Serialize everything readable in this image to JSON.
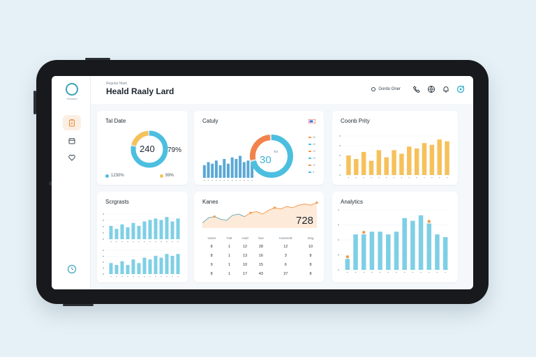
{
  "header": {
    "eyebrow": "Regular Mark",
    "title": "Heald Raaly Lard",
    "user_label": "Gordo Oner"
  },
  "sidebar": {
    "logo_caption": "Heasard",
    "items": [
      {
        "icon": "clipboard-icon",
        "active": true
      },
      {
        "icon": "calendar-icon",
        "active": false
      },
      {
        "icon": "heart-icon",
        "active": false
      }
    ],
    "bottom_icon": "clock-icon"
  },
  "colors": {
    "accent_teal": "#4cbfe0",
    "accent_orange": "#f39a4a",
    "accent_yellow": "#f6c15b",
    "track_gray": "#dfe4e8"
  },
  "cards": {
    "total": {
      "title": "Tal Date",
      "center_value": "240",
      "percent": "79%",
      "legend_left": "1230%",
      "legend_right": "99%"
    },
    "activity": {
      "title": "Catuly",
      "center_value": "30",
      "center_caption": "Tot",
      "legend_marks": [
        "30",
        "45",
        "20",
        "15",
        "10",
        "5"
      ]
    },
    "growth": {
      "title": "Coonb Prity"
    },
    "segments": {
      "title": "Scrgrasts"
    },
    "rates": {
      "title": "Kanes",
      "value": "728",
      "table_headers": [
        "Vanet",
        "Fatt",
        "Aatd",
        "Sue",
        "Caremrdt",
        "Dag"
      ],
      "table_rows": [
        [
          "8",
          "1",
          "12",
          "28",
          "12",
          "10"
        ],
        [
          "8",
          "1",
          "13",
          "16",
          "3",
          "8"
        ],
        [
          "9",
          "1",
          "10",
          "15",
          "6",
          "8"
        ],
        [
          "8",
          "1",
          "17",
          "43",
          "27",
          "8"
        ]
      ]
    },
    "analytics": {
      "title": "Analytics"
    }
  },
  "chart_data": [
    {
      "type": "pie",
      "name": "total-donut",
      "values": [
        79,
        21
      ],
      "colors": [
        "#4cbfe0",
        "#f6c15b"
      ]
    },
    {
      "type": "bar",
      "name": "activity-bars",
      "values": [
        8,
        10,
        9,
        11,
        8,
        12,
        9,
        13,
        12,
        14,
        10,
        11,
        12
      ],
      "ylim": [
        0,
        16
      ],
      "color": "#5aa8d6"
    },
    {
      "type": "pie",
      "name": "activity-donut",
      "values": [
        72,
        28
      ],
      "colors": [
        "#4cbfe0",
        "#f3824a"
      ]
    },
    {
      "type": "bar",
      "name": "growth-bars",
      "values": [
        11,
        9,
        13,
        8,
        14,
        10,
        14,
        12,
        16,
        15,
        18,
        17,
        20,
        19
      ],
      "ylim": [
        0,
        22
      ],
      "color": "#f6c15b"
    },
    {
      "type": "bar",
      "name": "segments-top-bars",
      "values": [
        9,
        7,
        10,
        8,
        11,
        9,
        12,
        13,
        14,
        13,
        15,
        12,
        14
      ],
      "ylim": [
        0,
        17
      ],
      "color": "#7ecfe6"
    },
    {
      "type": "bar",
      "name": "segments-bottom-bars",
      "values": [
        6,
        5,
        7,
        5,
        8,
        6,
        9,
        8,
        10,
        9,
        11,
        10,
        11
      ],
      "ylim": [
        0,
        13
      ],
      "color": "#7ecfe6"
    },
    {
      "type": "area",
      "name": "rates-area",
      "x": [
        0,
        1,
        2,
        3,
        4,
        5,
        6,
        7,
        8,
        9,
        10,
        11,
        12,
        13,
        14,
        15,
        16,
        17,
        18,
        19
      ],
      "values": [
        4,
        8,
        9,
        7,
        6,
        10,
        11,
        9,
        12,
        13,
        11,
        14,
        16,
        15,
        17,
        16,
        18,
        19,
        18,
        20
      ],
      "ylim": [
        0,
        22
      ],
      "color": "#f39a4a"
    },
    {
      "type": "bar",
      "name": "analytics-bars",
      "values": [
        4,
        13,
        13,
        14,
        14,
        13,
        14,
        19,
        18,
        20,
        17,
        13,
        12
      ],
      "ylim": [
        0,
        22
      ],
      "color": "#7ecfe6",
      "markers": [
        0,
        2,
        10
      ]
    }
  ]
}
